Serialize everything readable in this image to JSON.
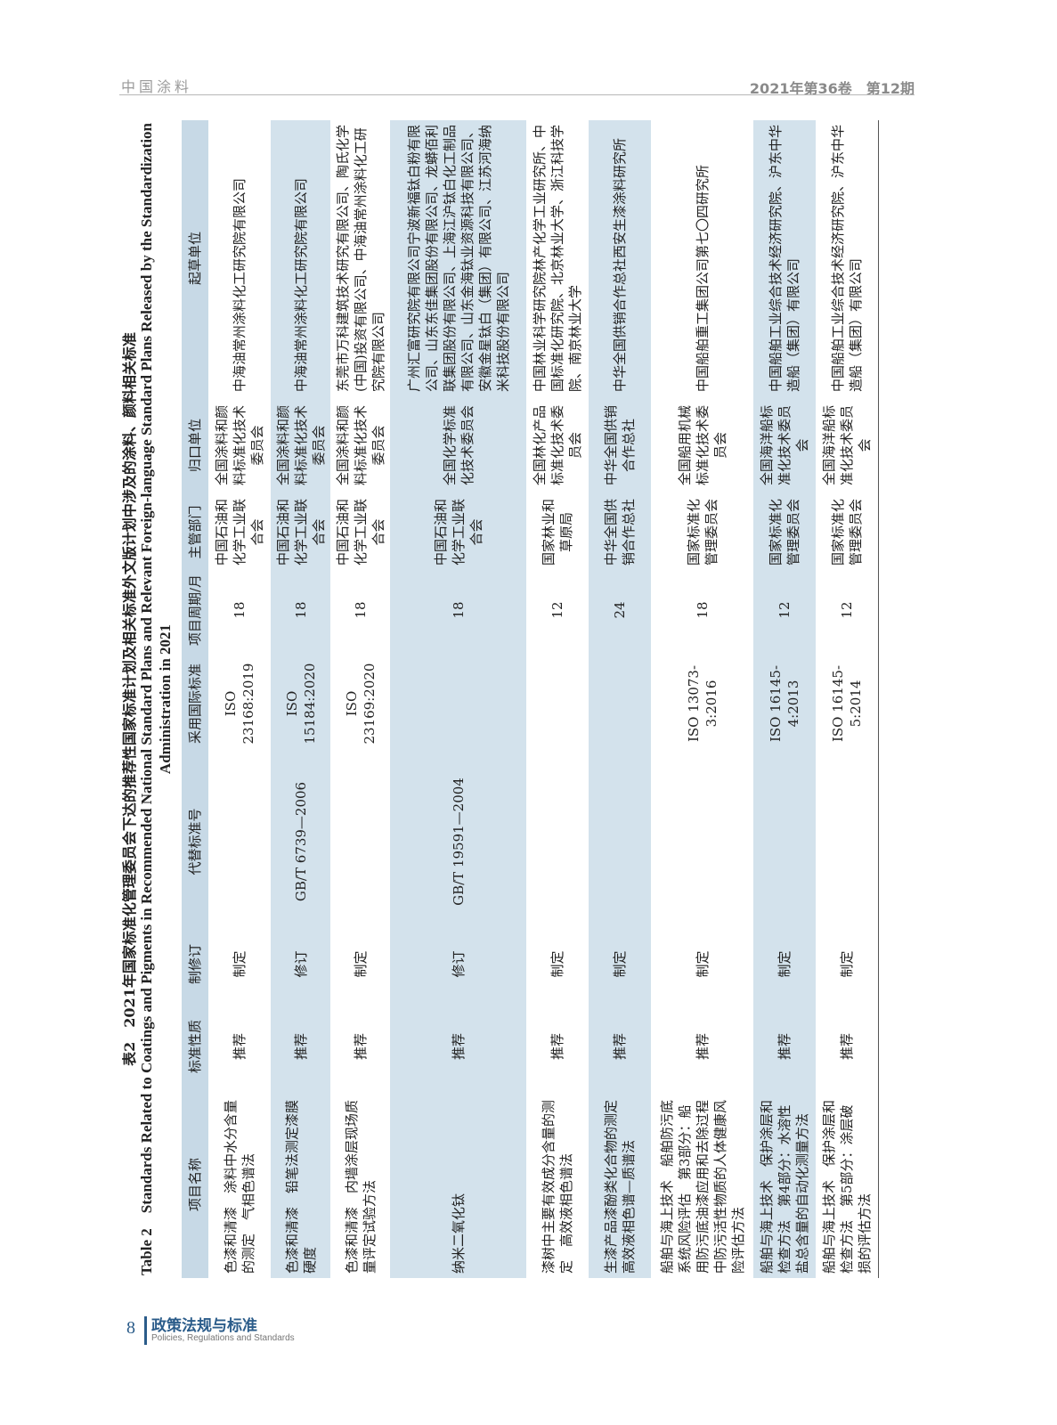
{
  "running_header": {
    "journal": "中国涂料",
    "issue": "2021年第36卷　第12期"
  },
  "table": {
    "title_cn": "表2　2021年国家标准化管理委员会下达的推荐性国家标准计划及相关标准外文版计划中涉及的涂料、颜料相关标准",
    "title_en": "Table 2　Standards Related to Coatings and Pigments in Recommended National Standard Plans and Relevant Foreign-language Standard Plans Released by the Standardization Administration in 2021",
    "headers": [
      "项目名称",
      "标准性质",
      "制修订",
      "代替标准号",
      "采用国际标准",
      "项目周期/月",
      "主管部门",
      "归口单位",
      "起草单位"
    ],
    "rows": [
      [
        "色漆和清漆　涂料中水分含量的测定　气相色谱法",
        "推荐",
        "制定",
        "",
        "ISO 23168:2019",
        "18",
        "中国石油和化学工业联合会",
        "全国涂料和颜料标准化技术委员会",
        "中海油常州涂料化工研究院有限公司"
      ],
      [
        "色漆和清漆　铅笔法测定漆膜硬度",
        "推荐",
        "修订",
        "GB/T 6739—2006",
        "ISO 15184:2020",
        "18",
        "中国石油和化学工业联合会",
        "全国涂料和颜料标准化技术委员会",
        "中海油常州涂料化工研究院有限公司"
      ],
      [
        "色漆和清漆　内墙涂层现场质量评定试验方法",
        "推荐",
        "制定",
        "",
        "ISO 23169:2020",
        "18",
        "中国石油和化学工业联合会",
        "全国涂料和颜料标准化技术委员会",
        "东莞市万科建筑技术研究有限公司、陶氏化学(中国)投资有限公司、中海油常州涂料化工研究院有限公司"
      ],
      [
        "纳米二氧化钛",
        "推荐",
        "修订",
        "GB/T 19591—2004",
        "",
        "18",
        "中国石油和化学工业联合会",
        "全国化学标准化技术委员会",
        "广州汇富研究院有限公司宁波新福钛白粉有限公司、山东东佳集团股份有限公司、龙蟒佰利联集团股份有限公司、上海江沪钛白化工制品有限公司、山东金海钛业资源科技有限公司、安徽金星钛白（集团）有限公司、江苏河海纳米科技股份有限公司"
      ],
      [
        "漆树中主要有效成分含量的测定　高效液相色谱法",
        "推荐",
        "制定",
        "",
        "",
        "12",
        "国家林业和草原局",
        "全国林化产品标准化技术委员会",
        "中国林业科学研究院林产化学工业研究所、中国标准化研究院、北京林业大学、浙江科技学院、南京林业大学"
      ],
      [
        "生漆产品漆酚类化合物的测定　高效液相色谱—质谱法",
        "推荐",
        "制定",
        "",
        "",
        "24",
        "中华全国供销合作总社",
        "中华全国供销合作总社",
        "中华全国供销合作总社西安生漆涂料研究所"
      ],
      [
        "船舶与海上技术　船舶防污底系统风险评估　第3部分：船用防污底油漆应用和去除过程中防污活性物质的人体健康风险评估方法",
        "推荐",
        "制定",
        "",
        "ISO 13073-3:2016",
        "18",
        "国家标准化管理委员会",
        "全国船用机械标准化技术委员会",
        "中国船舶重工集团公司第七〇四研究所"
      ],
      [
        "船舶与海上技术　保护涂层和检查方法　第4部分：水溶性盐总含量的自动化测量方法",
        "推荐",
        "制定",
        "",
        "ISO 16145-4:2013",
        "12",
        "国家标准化管理委员会",
        "全国海洋船标准化技术委员会",
        "中国船舶工业综合技术经济研究院、沪东中华造船（集团）有限公司"
      ],
      [
        "船舶与海上技术　保护涂层和检查方法　第5部分：涂层破损的评估方法",
        "推荐",
        "制定",
        "",
        "ISO 16145-5:2014",
        "12",
        "国家标准化管理委员会",
        "全国海洋船标准化技术委员会",
        "中国船舶工业综合技术经济研究院、沪东中华造船（集团）有限公司"
      ]
    ]
  },
  "footer": {
    "page_number": "8",
    "section_cn": "政策法规与标准",
    "section_en": "Policies, Regulations and Standards"
  },
  "colors": {
    "accent": "#2b5c8a",
    "header_fill": "#c7d9e6",
    "row_shade": "#d3e2ec"
  }
}
